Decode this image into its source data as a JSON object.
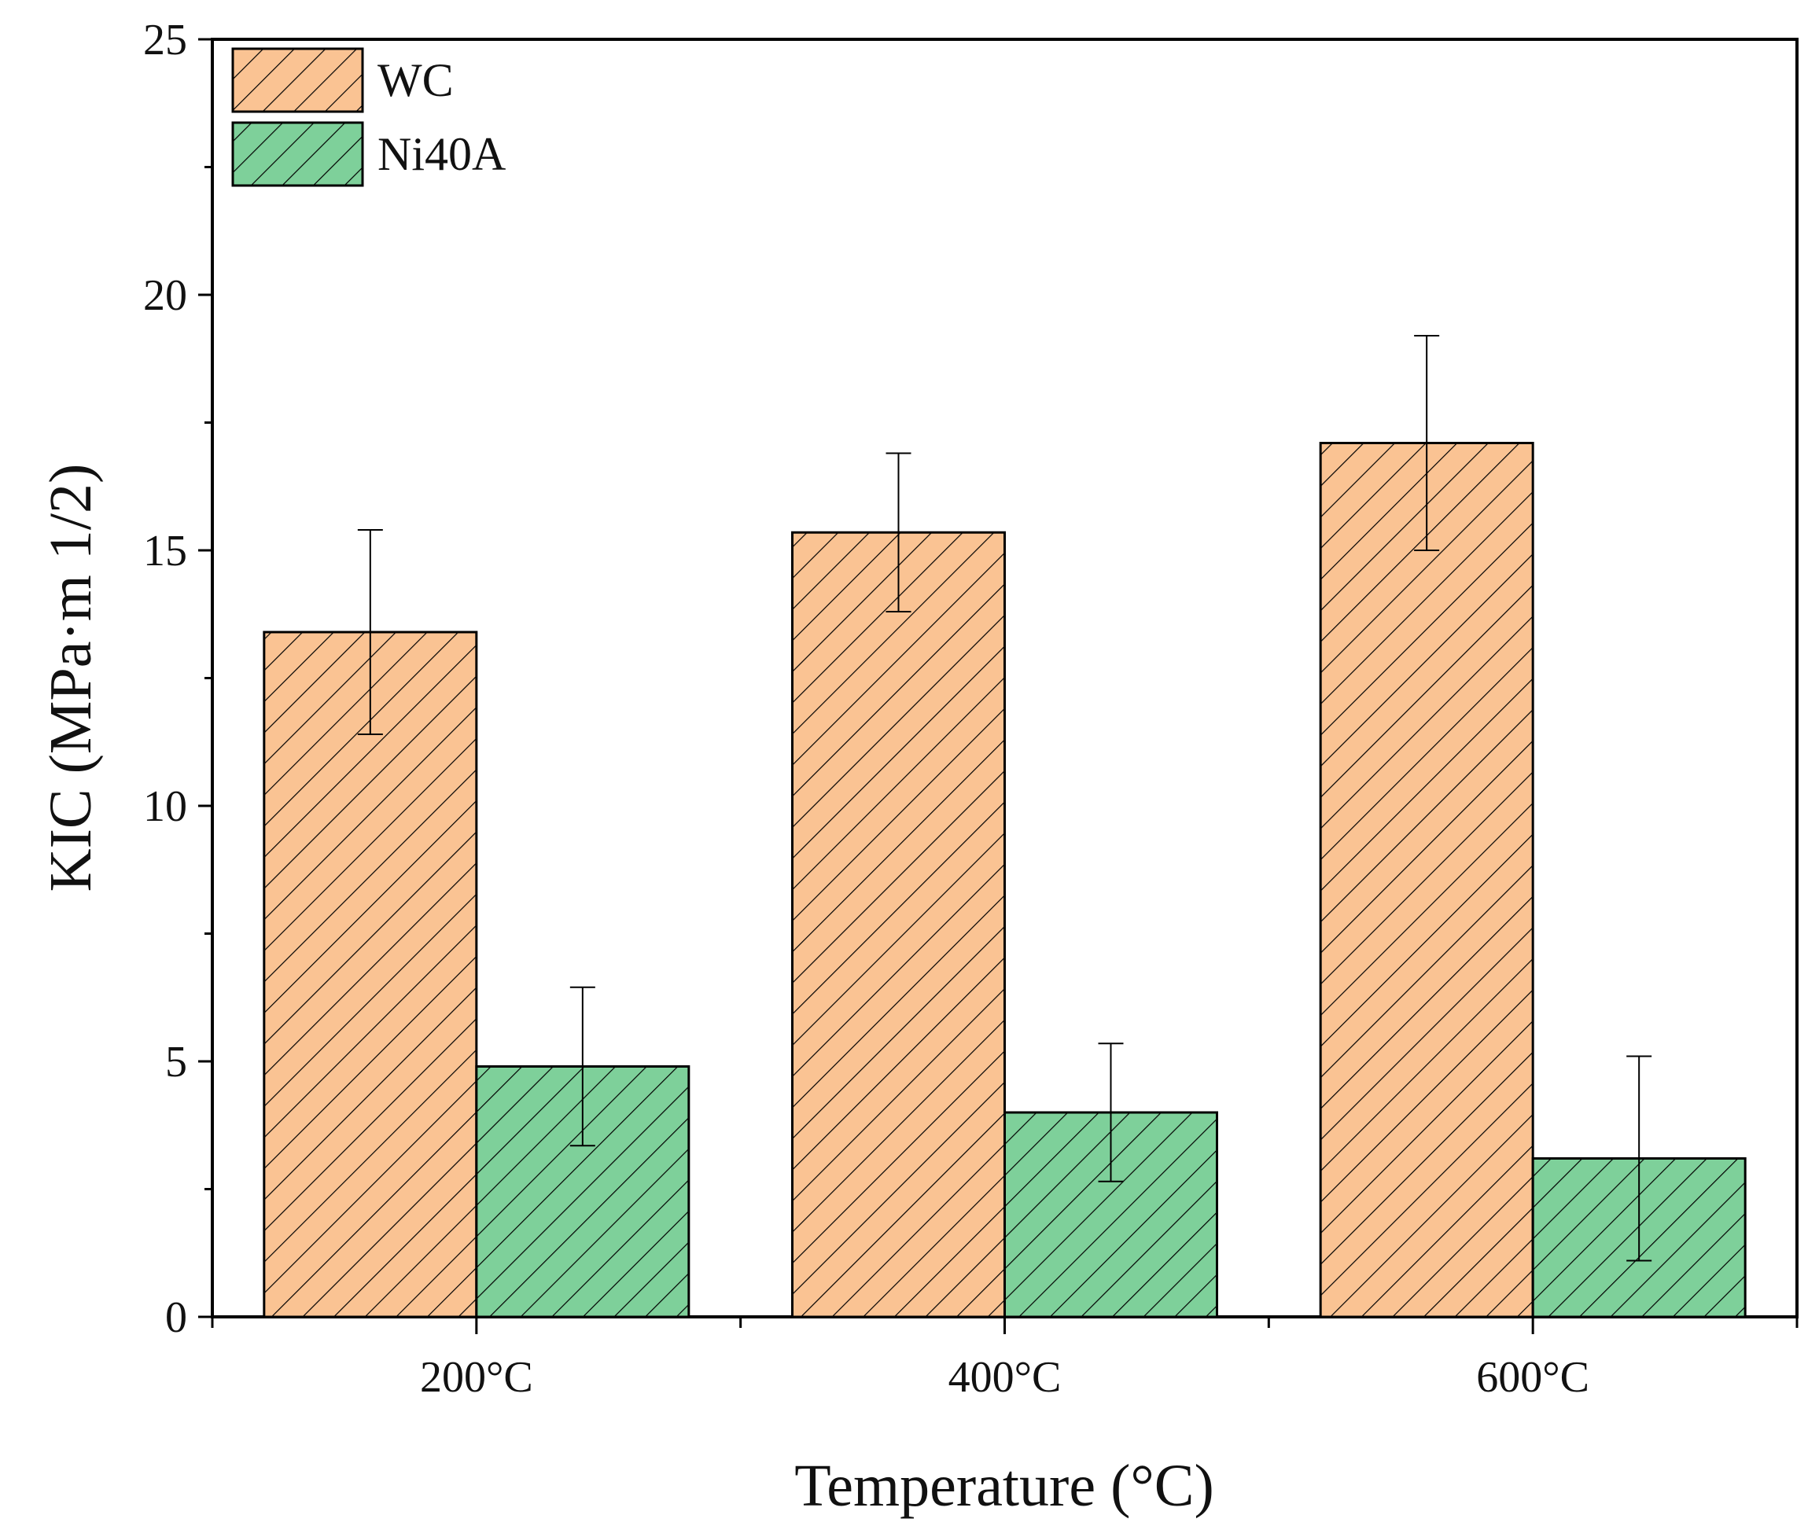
{
  "chart_data": {
    "type": "bar",
    "title": "",
    "xlabel": "Temperature (°C)",
    "ylabel": "KIC (MPa·m 1/2)",
    "categories": [
      "200°C",
      "400°C",
      "600°C"
    ],
    "ylim": [
      0,
      25
    ],
    "yticks": [
      "0",
      "5",
      "10",
      "15",
      "20",
      "25"
    ],
    "grid": false,
    "legend_position": "top-left",
    "series": [
      {
        "name": "WC",
        "color": "#FAC393",
        "pattern": "hatch",
        "values": [
          13.4,
          15.35,
          17.1
        ],
        "errors": [
          2.0,
          1.55,
          2.1
        ]
      },
      {
        "name": "Ni40A",
        "color": "#7ED09A",
        "pattern": "hatch",
        "values": [
          4.9,
          4.0,
          3.1
        ],
        "errors": [
          1.55,
          1.35,
          2.0
        ]
      }
    ]
  }
}
